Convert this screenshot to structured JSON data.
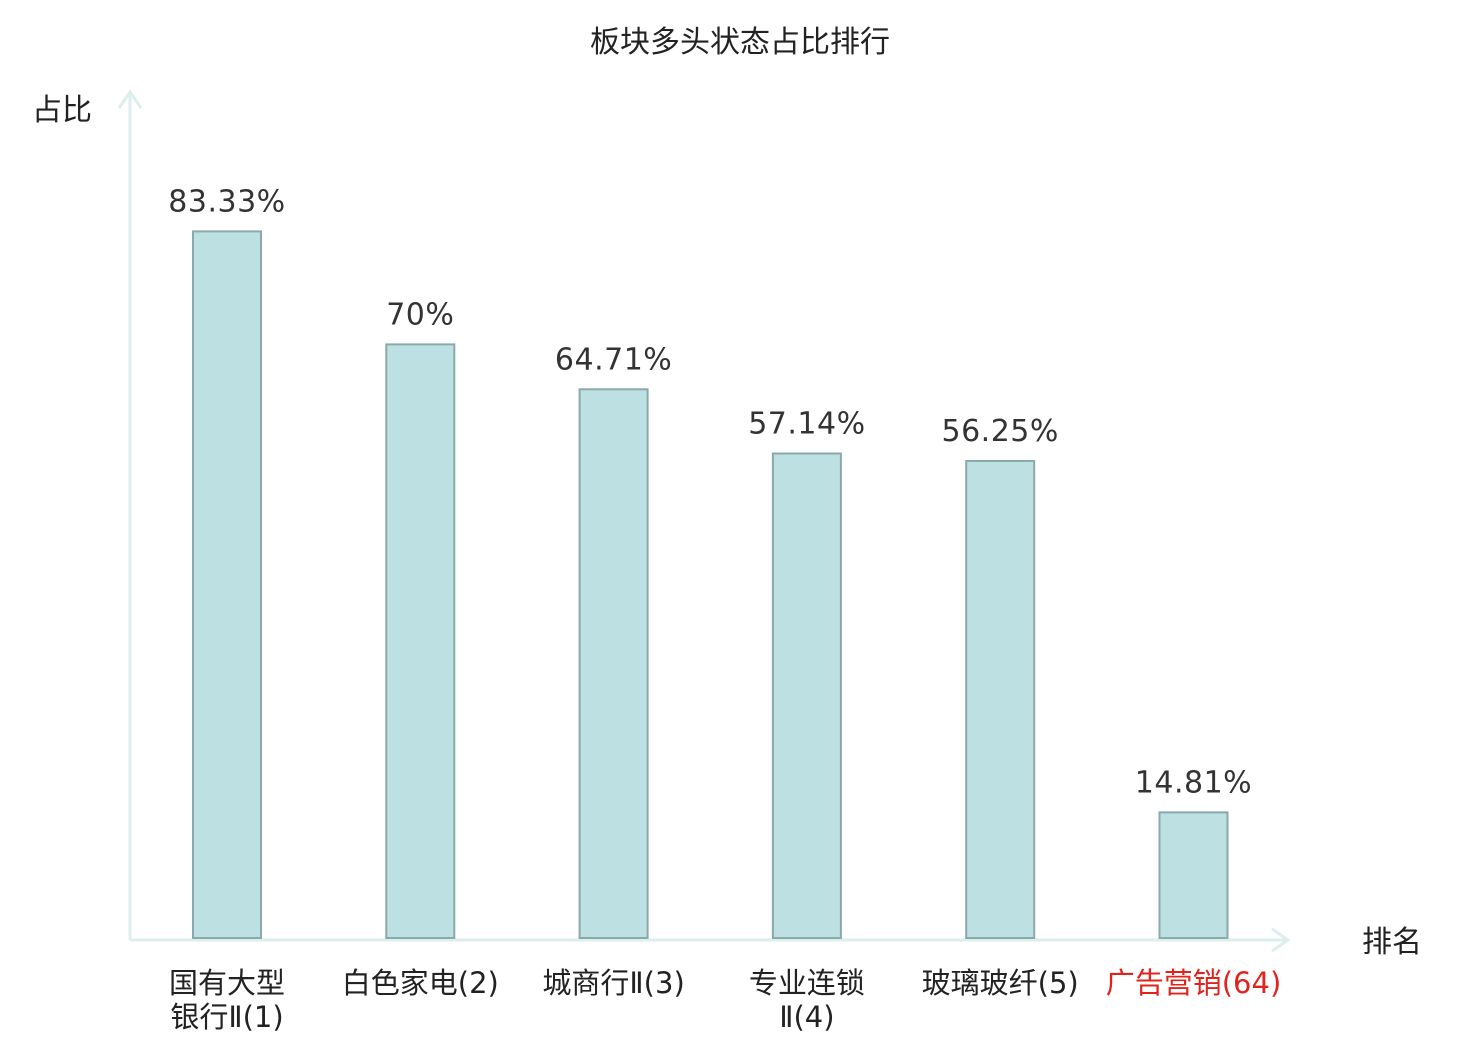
{
  "chart_data": {
    "type": "bar",
    "title": "板块多头状态占比排行",
    "ylabel": "占比",
    "xlabel": "排名",
    "ylim": [
      0,
      100
    ],
    "grid": false,
    "categories": [
      {
        "name": "国有大型银行Ⅱ",
        "rank": "(1)",
        "lines": [
          "国有大型",
          "银行Ⅱ(1)"
        ],
        "highlight": false
      },
      {
        "name": "白色家电",
        "rank": "(2)",
        "lines": [
          "白色家电(2)"
        ],
        "highlight": false
      },
      {
        "name": "城商行Ⅱ",
        "rank": "(3)",
        "lines": [
          "城商行Ⅱ(3)"
        ],
        "highlight": false
      },
      {
        "name": "专业连锁Ⅱ",
        "rank": "(4)",
        "lines": [
          "专业连锁",
          "Ⅱ(4)"
        ],
        "highlight": false
      },
      {
        "name": "玻璃玻纤",
        "rank": "(5)",
        "lines": [
          "玻璃玻纤(5)"
        ],
        "highlight": false
      },
      {
        "name": "广告营销",
        "rank": "(64)",
        "lines": [
          "广告营销(64)"
        ],
        "highlight": true
      }
    ],
    "values": [
      83.33,
      70,
      64.71,
      57.14,
      56.25,
      14.81
    ],
    "value_labels": [
      "83.33%",
      "70%",
      "64.71%",
      "57.14%",
      "56.25%",
      "14.81%"
    ],
    "colors": {
      "bar_fill": "#bde0e2",
      "bar_stroke": "#8aa9aa",
      "axis": "#dcefec",
      "highlight_text": "#e0231c",
      "text": "#222222"
    }
  }
}
